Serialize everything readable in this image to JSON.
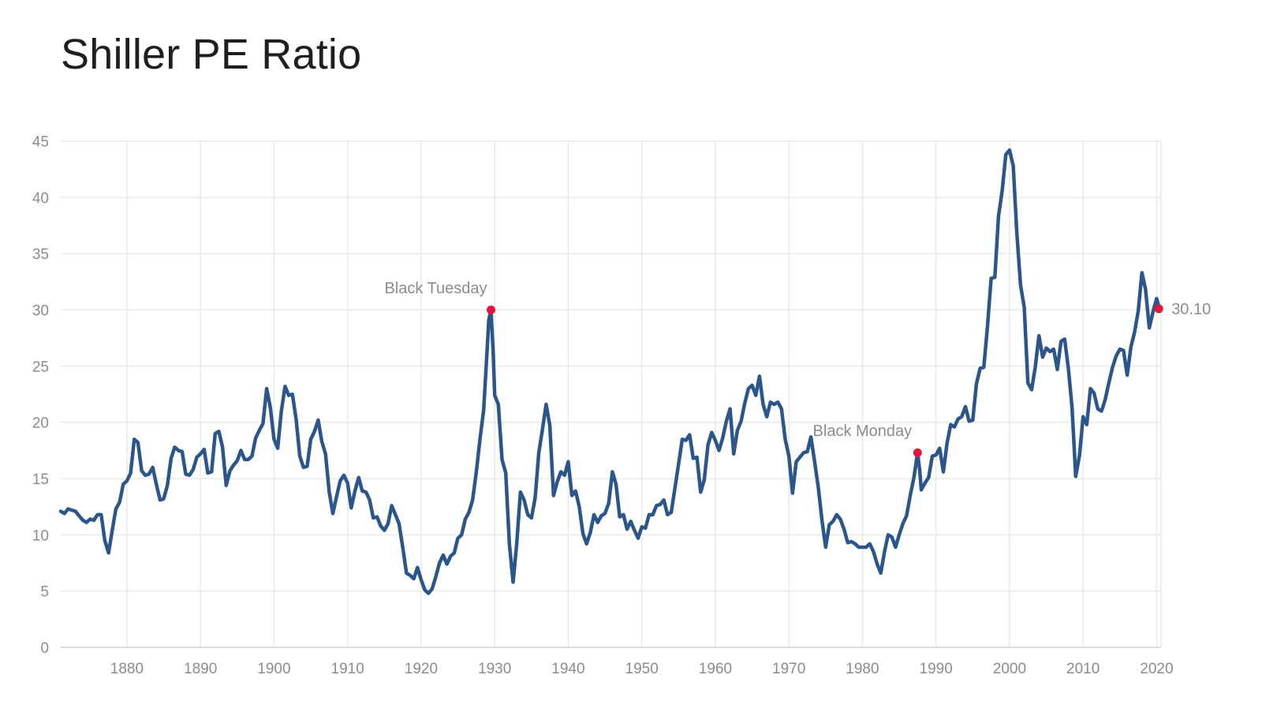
{
  "chart_data": {
    "type": "line",
    "title": "Shiller PE Ratio",
    "xlabel": "",
    "ylabel": "",
    "xlim": [
      1871,
      2020.6
    ],
    "ylim": [
      0,
      45
    ],
    "grid": true,
    "legend": "none",
    "x_ticks": [
      "1880",
      "1890",
      "1900",
      "1910",
      "1920",
      "1930",
      "1940",
      "1950",
      "1960",
      "1970",
      "1980",
      "1990",
      "2000",
      "2010",
      "2020"
    ],
    "y_ticks": [
      "0",
      "5",
      "10",
      "15",
      "20",
      "25",
      "30",
      "35",
      "40",
      "45"
    ],
    "colors": {
      "line": "#2b568c",
      "marker": "#e4163a"
    },
    "series": [
      {
        "x": [
          1871,
          1871.5,
          1872,
          1873,
          1874,
          1874.5,
          1875,
          1875.5,
          1876,
          1876.5,
          1877,
          1877.5,
          1878,
          1878.5,
          1879,
          1879.5,
          1880,
          1880.5,
          1881,
          1881.5,
          1882,
          1882.5,
          1883,
          1883.5,
          1884,
          1884.5,
          1885,
          1885.5,
          1886,
          1886.5,
          1887,
          1887.5,
          1888,
          1888.5,
          1889,
          1889.5,
          1890,
          1890.5,
          1891,
          1891.5,
          1892,
          1892.5,
          1893,
          1893.5,
          1894,
          1894.5,
          1895,
          1895.5,
          1896,
          1896.5,
          1897,
          1897.5,
          1898,
          1898.5,
          1899,
          1899.5,
          1900,
          1900.5,
          1901,
          1901.5,
          1902,
          1902.5,
          1903,
          1903.5,
          1904,
          1904.5,
          1905,
          1905.5,
          1906,
          1906.5,
          1907,
          1907.5,
          1908,
          1908.5,
          1909,
          1909.5,
          1910,
          1910.5,
          1911,
          1911.5,
          1912,
          1912.5,
          1913,
          1913.5,
          1914,
          1914.5,
          1915,
          1915.5,
          1916,
          1916.5,
          1917,
          1917.5,
          1918,
          1918.5,
          1919,
          1919.5,
          1920,
          1920.5,
          1921,
          1921.5,
          1922,
          1922.5,
          1923,
          1923.5,
          1924,
          1924.5,
          1925,
          1925.5,
          1926,
          1926.5,
          1927,
          1927.5,
          1928,
          1928.5,
          1929,
          1929.2,
          1929.5,
          1929.8,
          1930,
          1930.5,
          1931,
          1931.5,
          1932,
          1932.5,
          1933,
          1933.5,
          1934,
          1934.5,
          1935,
          1935.5,
          1936,
          1936.5,
          1937,
          1937.5,
          1938,
          1938.5,
          1939,
          1939.5,
          1940,
          1940.5,
          1941,
          1941.5,
          1942,
          1942.5,
          1943,
          1943.5,
          1944,
          1944.5,
          1945,
          1945.5,
          1946,
          1946.5,
          1947,
          1947.5,
          1948,
          1948.5,
          1949,
          1949.5,
          1950,
          1950.5,
          1951,
          1951.5,
          1952,
          1952.5,
          1953,
          1953.5,
          1954,
          1954.5,
          1955,
          1955.5,
          1956,
          1956.5,
          1957,
          1957.5,
          1958,
          1958.5,
          1959,
          1959.5,
          1960,
          1960.5,
          1961,
          1961.5,
          1962,
          1962.5,
          1963,
          1963.5,
          1964,
          1964.5,
          1965,
          1965.5,
          1966,
          1966.5,
          1967,
          1967.5,
          1968,
          1968.5,
          1969,
          1969.5,
          1970,
          1970.5,
          1971,
          1971.5,
          1972,
          1972.5,
          1973,
          1973.5,
          1974,
          1974.5,
          1975,
          1975.5,
          1976,
          1976.5,
          1977,
          1977.5,
          1978,
          1978.5,
          1979,
          1979.5,
          1980,
          1980.5,
          1981,
          1981.5,
          1982,
          1982.5,
          1983,
          1983.5,
          1984,
          1984.5,
          1985,
          1985.5,
          1986,
          1986.5,
          1987,
          1987.5,
          1987.8,
          1988,
          1988.5,
          1989,
          1989.5,
          1990,
          1990.5,
          1991,
          1991.5,
          1992,
          1992.5,
          1993,
          1993.5,
          1994,
          1994.5,
          1995,
          1995.5,
          1996,
          1996.5,
          1997,
          1997.5,
          1998,
          1998.5,
          1999,
          1999.5,
          2000,
          2000.5,
          2001,
          2001.5,
          2002,
          2002.5,
          2003,
          2003.5,
          2004,
          2004.5,
          2005,
          2005.5,
          2006,
          2006.5,
          2007,
          2007.5,
          2008,
          2008.5,
          2009,
          2009.5,
          2010,
          2010.5,
          2011,
          2011.5,
          2012,
          2012.5,
          2013,
          2013.5,
          2014,
          2014.5,
          2015,
          2015.5,
          2016,
          2016.5,
          2017,
          2017.5,
          2018,
          2018.5,
          2019,
          2019.5,
          2020,
          2020.3,
          2020.6
        ],
        "values": [
          12.1,
          11.9,
          12.3,
          12.1,
          11.3,
          11.1,
          11.4,
          11.3,
          11.8,
          11.8,
          9.5,
          8.4,
          10.4,
          12.3,
          12.9,
          14.5,
          14.8,
          15.5,
          18.5,
          18.2,
          15.7,
          15.3,
          15.4,
          16.0,
          14.5,
          13.1,
          13.2,
          14.4,
          16.8,
          17.8,
          17.5,
          17.4,
          15.4,
          15.3,
          15.8,
          16.9,
          17.2,
          17.6,
          15.5,
          15.6,
          19.0,
          19.2,
          17.8,
          14.4,
          15.7,
          16.2,
          16.6,
          17.5,
          16.7,
          16.7,
          17.0,
          18.6,
          19.3,
          19.9,
          23.0,
          21.3,
          18.5,
          17.7,
          21.0,
          23.2,
          22.4,
          22.5,
          20.3,
          17.0,
          16.0,
          16.1,
          18.5,
          19.2,
          20.2,
          18.3,
          17.2,
          13.8,
          11.9,
          13.4,
          14.8,
          15.3,
          14.6,
          12.4,
          13.9,
          15.1,
          13.9,
          13.8,
          13.1,
          11.5,
          11.6,
          10.8,
          10.4,
          11.0,
          12.6,
          11.8,
          11.0,
          8.9,
          6.6,
          6.4,
          6.1,
          7.1,
          6.0,
          5.1,
          4.8,
          5.2,
          6.3,
          7.5,
          8.2,
          7.4,
          8.1,
          8.4,
          9.7,
          10.0,
          11.4,
          12.0,
          13.1,
          15.6,
          18.5,
          21.1,
          26.7,
          29.1,
          30.0,
          26.2,
          22.4,
          21.6,
          16.7,
          15.5,
          9.2,
          5.8,
          9.2,
          13.8,
          13.1,
          11.8,
          11.5,
          13.3,
          17.3,
          19.4,
          21.6,
          19.7,
          13.5,
          14.7,
          15.6,
          15.3,
          16.5,
          13.5,
          13.9,
          12.5,
          10.1,
          9.2,
          10.2,
          11.8,
          11.1,
          11.7,
          11.9,
          12.8,
          15.6,
          14.5,
          11.6,
          11.8,
          10.5,
          11.2,
          10.4,
          9.7,
          10.7,
          10.6,
          11.8,
          11.8,
          12.6,
          12.7,
          13.1,
          11.8,
          12.0,
          14.1,
          16.3,
          18.5,
          18.4,
          18.9,
          16.8,
          16.9,
          13.8,
          14.9,
          18.0,
          19.1,
          18.4,
          17.5,
          18.6,
          20.1,
          21.2,
          17.2,
          19.3,
          20.1,
          21.7,
          23.0,
          23.3,
          22.4,
          24.1,
          21.6,
          20.5,
          21.8,
          21.6,
          21.8,
          21.2,
          18.5,
          17.0,
          13.7,
          16.5,
          16.9,
          17.3,
          17.4,
          18.7,
          16.5,
          14.2,
          11.3,
          8.9,
          10.9,
          11.2,
          11.8,
          11.4,
          10.5,
          9.3,
          9.4,
          9.2,
          8.9,
          8.9,
          8.9,
          9.2,
          8.5,
          7.4,
          6.6,
          8.5,
          10.0,
          9.8,
          8.9,
          10.0,
          11.0,
          11.7,
          13.5,
          15.1,
          17.3,
          15.7,
          14.0,
          14.6,
          15.1,
          17.0,
          17.1,
          17.7,
          15.6,
          18.1,
          19.8,
          19.6,
          20.3,
          20.5,
          21.4,
          20.1,
          20.2,
          23.4,
          24.8,
          24.9,
          28.5,
          32.8,
          32.9,
          38.3,
          40.6,
          43.8,
          44.2,
          42.8,
          36.8,
          32.2,
          30.2,
          23.5,
          22.9,
          24.9,
          27.7,
          25.8,
          26.6,
          26.3,
          26.5,
          24.7,
          27.2,
          27.4,
          24.8,
          21.3,
          15.2,
          17.0,
          20.5,
          19.8,
          23.0,
          22.6,
          21.2,
          21.0,
          22.0,
          23.5,
          24.9,
          25.9,
          26.5,
          26.4,
          24.2,
          26.7,
          28.0,
          29.9,
          33.3,
          31.8,
          28.4,
          29.8,
          31.0,
          30.3,
          30.1
        ]
      }
    ],
    "annotations": [
      {
        "label": "Black Tuesday",
        "x": 1929.5,
        "y": 30.0
      },
      {
        "label": "Black Monday",
        "x": 1987.5,
        "y": 17.3
      },
      {
        "label": "30.10",
        "x": 2020.3,
        "y": 30.1
      }
    ]
  }
}
